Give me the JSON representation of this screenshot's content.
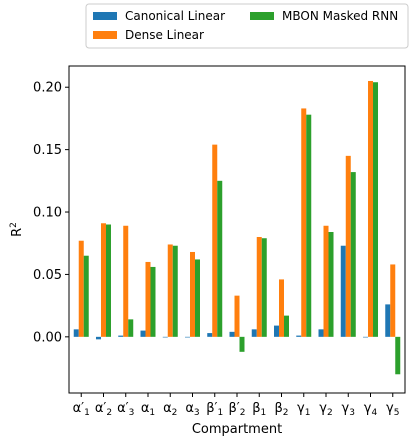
{
  "chart_data": {
    "type": "bar",
    "xlabel": "Compartment",
    "ylabel": "R²",
    "ylim": [
      -0.045,
      0.217
    ],
    "yticks": [
      0.0,
      0.05,
      0.1,
      0.15,
      0.2
    ],
    "ytick_labels": [
      "0.00",
      "0.05",
      "0.10",
      "0.15",
      "0.20"
    ],
    "categories": [
      {
        "base": "α",
        "prime": true,
        "sub": "1"
      },
      {
        "base": "α",
        "prime": true,
        "sub": "2"
      },
      {
        "base": "α",
        "prime": true,
        "sub": "3"
      },
      {
        "base": "α",
        "prime": false,
        "sub": "1"
      },
      {
        "base": "α",
        "prime": false,
        "sub": "2"
      },
      {
        "base": "α",
        "prime": false,
        "sub": "3"
      },
      {
        "base": "β",
        "prime": true,
        "sub": "1"
      },
      {
        "base": "β",
        "prime": true,
        "sub": "2"
      },
      {
        "base": "β",
        "prime": false,
        "sub": "1"
      },
      {
        "base": "β",
        "prime": false,
        "sub": "2"
      },
      {
        "base": "γ",
        "prime": false,
        "sub": "1"
      },
      {
        "base": "γ",
        "prime": false,
        "sub": "2"
      },
      {
        "base": "γ",
        "prime": false,
        "sub": "3"
      },
      {
        "base": "γ",
        "prime": false,
        "sub": "4"
      },
      {
        "base": "γ",
        "prime": false,
        "sub": "5"
      }
    ],
    "series": [
      {
        "name": "Canonical Linear",
        "color": "#1f77b4",
        "values": [
          0.006,
          -0.002,
          0.001,
          0.005,
          0.0,
          0.0,
          0.003,
          0.004,
          0.006,
          0.009,
          0.001,
          0.006,
          0.073,
          0.0,
          0.026
        ]
      },
      {
        "name": "Dense Linear",
        "color": "#ff7f0e",
        "values": [
          0.077,
          0.091,
          0.089,
          0.06,
          0.074,
          0.068,
          0.154,
          0.033,
          0.08,
          0.046,
          0.183,
          0.089,
          0.145,
          0.205,
          0.058
        ]
      },
      {
        "name": "MBON Masked RNN",
        "color": "#2ca02c",
        "values": [
          0.065,
          0.09,
          0.014,
          0.056,
          0.073,
          0.062,
          0.125,
          -0.012,
          0.079,
          0.017,
          0.178,
          0.084,
          0.132,
          0.204,
          -0.03
        ]
      }
    ],
    "legend": {
      "placement": "top-outside",
      "columns": 2
    },
    "grid": false
  }
}
